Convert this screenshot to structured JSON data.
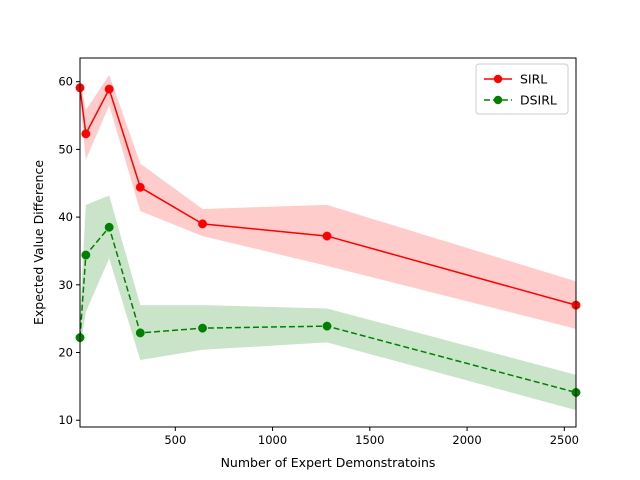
{
  "chart_data": {
    "type": "line",
    "xlabel": "Number of Expert Demonstratoins",
    "ylabel": "Expected Value Difference",
    "xlim": [
      10,
      2560
    ],
    "ylim": [
      9,
      63.5
    ],
    "xticks": [
      500,
      1000,
      1500,
      2000,
      2500
    ],
    "yticks": [
      10,
      20,
      30,
      40,
      50,
      60
    ],
    "grid": false,
    "legend_position": "top-right",
    "x": [
      10,
      40,
      160,
      320,
      640,
      1280,
      2560
    ],
    "series": [
      {
        "name": "SIRL",
        "color": "#ff0000",
        "band_color": "#ffcccc",
        "line_style": "solid",
        "marker": "circle",
        "values": [
          59.1,
          52.3,
          58.9,
          44.4,
          39.0,
          37.2,
          27.0
        ],
        "lower": [
          57.5,
          48.5,
          56.5,
          40.9,
          37.2,
          32.8,
          23.5
        ],
        "upper": [
          60.5,
          55.8,
          61.0,
          47.9,
          41.2,
          41.8,
          30.5
        ]
      },
      {
        "name": "DSIRL",
        "color": "#008000",
        "band_color": "#c9e4c9",
        "line_style": "dashed",
        "marker": "circle",
        "values": [
          22.2,
          34.4,
          38.5,
          22.9,
          23.6,
          23.9,
          14.1
        ],
        "lower": [
          20.5,
          26.0,
          33.9,
          18.9,
          20.4,
          21.5,
          11.5
        ],
        "upper": [
          25.5,
          41.8,
          43.2,
          27.0,
          27.0,
          26.5,
          16.7
        ]
      }
    ]
  }
}
